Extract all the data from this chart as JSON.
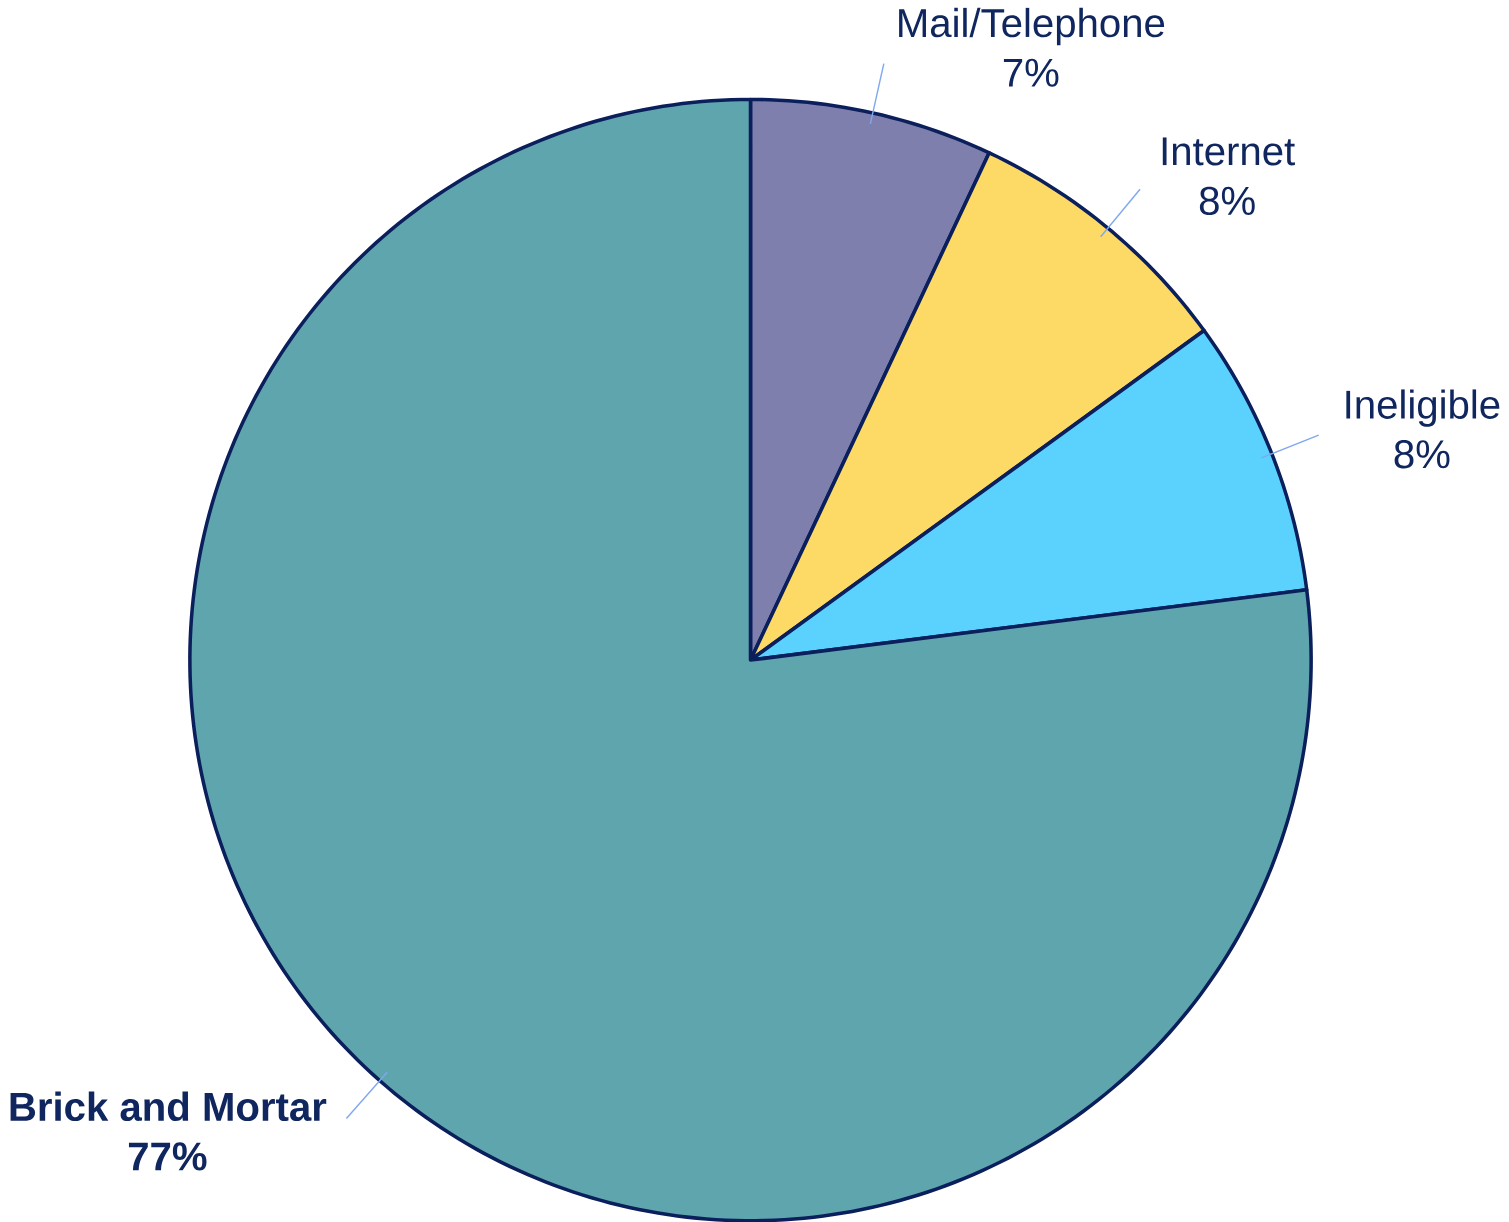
{
  "chart_data": {
    "type": "pie",
    "categories": [
      "Mail/Telephone",
      "Internet",
      "Ineligible",
      "Brick and Mortar"
    ],
    "values": [
      7,
      8,
      8,
      77
    ],
    "colors": [
      "#7f7fae",
      "#fdd966",
      "#5bd2fe",
      "#5fa5ae"
    ],
    "value_labels": [
      "7%",
      "8%",
      "8%",
      "77%"
    ]
  }
}
